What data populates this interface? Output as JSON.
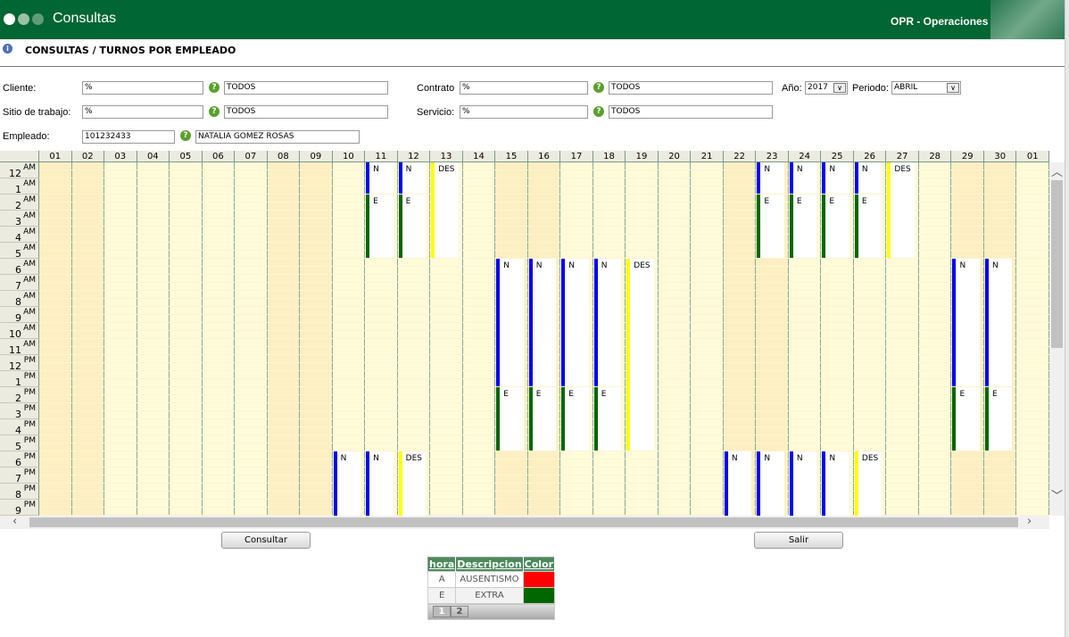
{
  "header": {
    "app_title": "Consultas",
    "module_title": "OPR - Operaciones"
  },
  "page_title": "CONSULTAS / TURNOS POR EMPLEADO",
  "form": {
    "cliente": {
      "label": "Cliente:",
      "code": "%",
      "name": "TODOS"
    },
    "sitio": {
      "label": "Sitio de trabajo:",
      "code": "%",
      "name": "TODOS"
    },
    "empleado": {
      "label": "Empleado:",
      "code": "101232433",
      "name": "NATALIA GOMEZ ROSAS"
    },
    "contrato": {
      "label": "Contrato",
      "code": "%",
      "name": "TODOS"
    },
    "servicio": {
      "label": "Servicio:",
      "code": "%",
      "name": "TODOS"
    },
    "anio": {
      "label": "Año:",
      "value": "2017"
    },
    "periodo": {
      "label": "Periodo:",
      "value": "ABRIL"
    }
  },
  "grid": {
    "days": [
      "01",
      "02",
      "03",
      "04",
      "05",
      "06",
      "07",
      "08",
      "09",
      "10",
      "11",
      "12",
      "13",
      "14",
      "15",
      "16",
      "17",
      "18",
      "19",
      "20",
      "21",
      "22",
      "23",
      "24",
      "25",
      "26",
      "27",
      "28",
      "29",
      "30",
      "01"
    ],
    "weekend_indexes": [
      0,
      1,
      7,
      8,
      14,
      15,
      21,
      22,
      28,
      29
    ],
    "hours": [
      [
        "12",
        "AM"
      ],
      [
        "1",
        "AM"
      ],
      [
        "2",
        "AM"
      ],
      [
        "3",
        "AM"
      ],
      [
        "4",
        "AM"
      ],
      [
        "5",
        "AM"
      ],
      [
        "6",
        "AM"
      ],
      [
        "7",
        "AM"
      ],
      [
        "8",
        "AM"
      ],
      [
        "9",
        "AM"
      ],
      [
        "10",
        "AM"
      ],
      [
        "11",
        "AM"
      ],
      [
        "12",
        "PM"
      ],
      [
        "1",
        "PM"
      ],
      [
        "2",
        "PM"
      ],
      [
        "3",
        "PM"
      ],
      [
        "4",
        "PM"
      ],
      [
        "5",
        "PM"
      ],
      [
        "6",
        "PM"
      ],
      [
        "7",
        "PM"
      ],
      [
        "8",
        "PM"
      ],
      [
        "9",
        "PM"
      ]
    ],
    "shift_colors": {
      "N": "#0000ee",
      "E": "#006600",
      "DES": "#ffff00"
    },
    "shifts": [
      {
        "day": 11,
        "code": "N",
        "start": 0,
        "end": 2
      },
      {
        "day": 11,
        "code": "E",
        "start": 2,
        "end": 6
      },
      {
        "day": 12,
        "code": "N",
        "start": 0,
        "end": 2
      },
      {
        "day": 12,
        "code": "E",
        "start": 2,
        "end": 6
      },
      {
        "day": 13,
        "code": "DES",
        "start": 0,
        "end": 6
      },
      {
        "day": 23,
        "code": "N",
        "start": 0,
        "end": 2
      },
      {
        "day": 23,
        "code": "E",
        "start": 2,
        "end": 6
      },
      {
        "day": 24,
        "code": "N",
        "start": 0,
        "end": 2
      },
      {
        "day": 24,
        "code": "E",
        "start": 2,
        "end": 6
      },
      {
        "day": 25,
        "code": "N",
        "start": 0,
        "end": 2
      },
      {
        "day": 25,
        "code": "E",
        "start": 2,
        "end": 6
      },
      {
        "day": 26,
        "code": "N",
        "start": 0,
        "end": 2
      },
      {
        "day": 26,
        "code": "E",
        "start": 2,
        "end": 6
      },
      {
        "day": 27,
        "code": "DES",
        "start": 0,
        "end": 6
      },
      {
        "day": 15,
        "code": "N",
        "start": 6,
        "end": 14
      },
      {
        "day": 15,
        "code": "E",
        "start": 14,
        "end": 18
      },
      {
        "day": 16,
        "code": "N",
        "start": 6,
        "end": 14
      },
      {
        "day": 16,
        "code": "E",
        "start": 14,
        "end": 18
      },
      {
        "day": 17,
        "code": "N",
        "start": 6,
        "end": 14
      },
      {
        "day": 17,
        "code": "E",
        "start": 14,
        "end": 18
      },
      {
        "day": 18,
        "code": "N",
        "start": 6,
        "end": 14
      },
      {
        "day": 18,
        "code": "E",
        "start": 14,
        "end": 18
      },
      {
        "day": 19,
        "code": "DES",
        "start": 6,
        "end": 18
      },
      {
        "day": 29,
        "code": "N",
        "start": 6,
        "end": 14
      },
      {
        "day": 29,
        "code": "E",
        "start": 14,
        "end": 18
      },
      {
        "day": 30,
        "code": "N",
        "start": 6,
        "end": 14
      },
      {
        "day": 30,
        "code": "E",
        "start": 14,
        "end": 18
      },
      {
        "day": 10,
        "code": "N",
        "start": 18,
        "end": 24
      },
      {
        "day": 11,
        "code": "N",
        "start": 18,
        "end": 24
      },
      {
        "day": 12,
        "code": "DES",
        "start": 18,
        "end": 24
      },
      {
        "day": 22,
        "code": "N",
        "start": 18,
        "end": 24
      },
      {
        "day": 23,
        "code": "N",
        "start": 18,
        "end": 24
      },
      {
        "day": 24,
        "code": "N",
        "start": 18,
        "end": 24
      },
      {
        "day": 25,
        "code": "N",
        "start": 18,
        "end": 24
      },
      {
        "day": 26,
        "code": "DES",
        "start": 18,
        "end": 24
      }
    ]
  },
  "buttons": {
    "consultar": "Consultar",
    "salir": "Salir"
  },
  "legend": {
    "headers": [
      "hora",
      "Descripcion",
      "Color"
    ],
    "rows": [
      {
        "code": "A",
        "desc": "AUSENTISMO",
        "color": "#ff0000"
      },
      {
        "code": "E",
        "desc": "EXTRA",
        "color": "#006600"
      }
    ],
    "pages": [
      "1",
      "2"
    ]
  }
}
